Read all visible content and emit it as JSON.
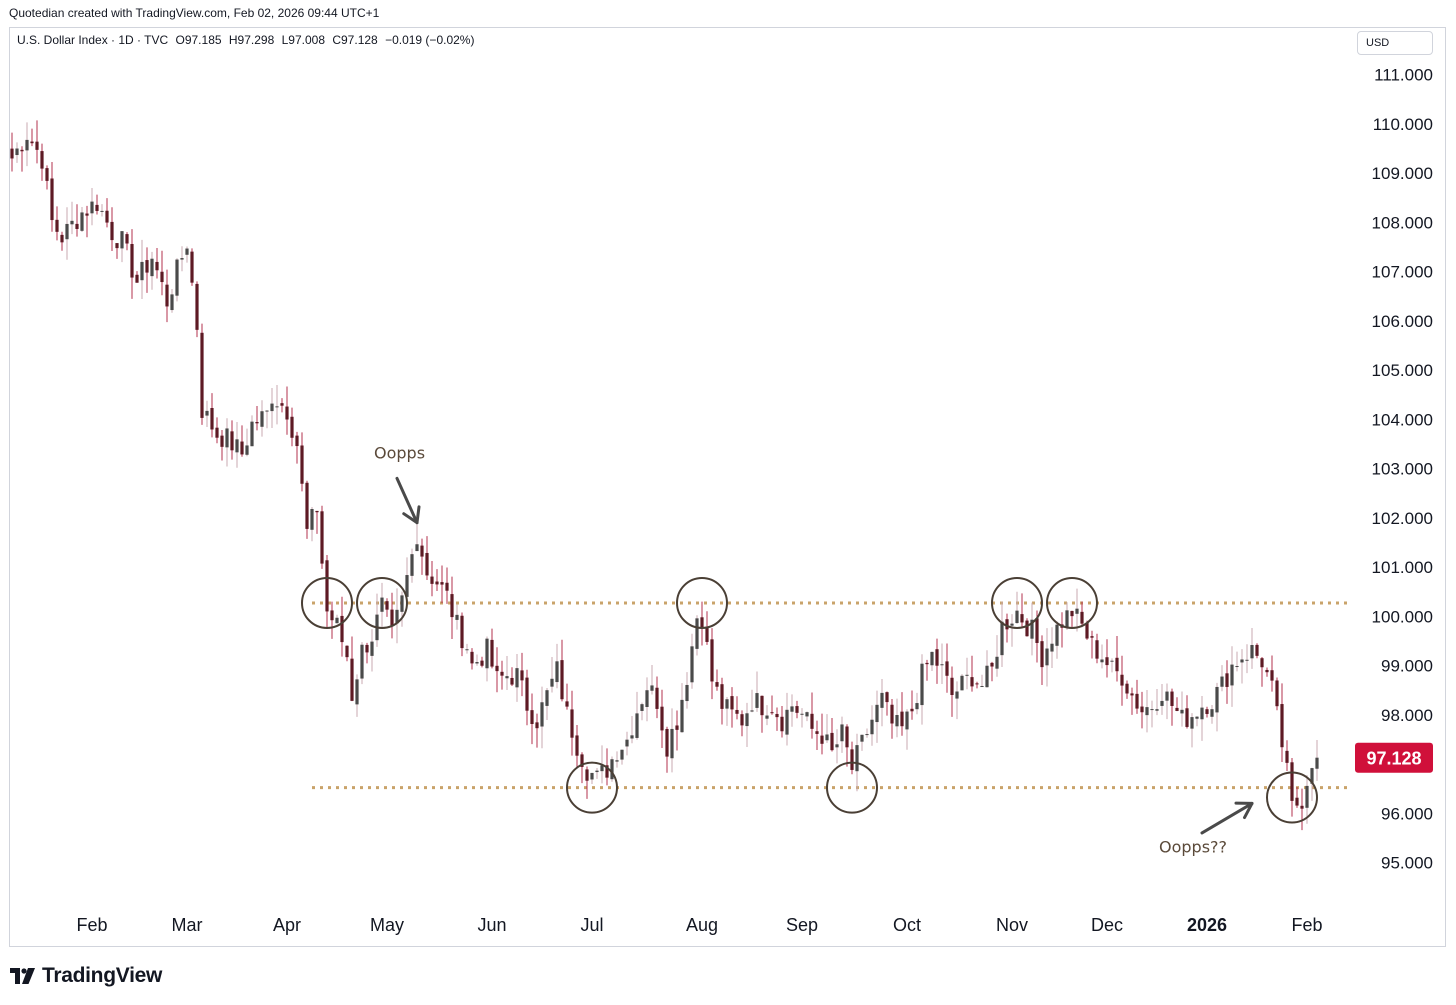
{
  "header": {
    "credit": "Quotedian created with TradingView.com, Feb 02, 2026 09:44 UTC+1"
  },
  "symbol": {
    "name": "U.S. Dollar Index · 1D · TVC",
    "open": "O97.185",
    "high": "H97.298",
    "low": "L97.008",
    "close": "C97.128",
    "change": "−0.019 (−0.02%)"
  },
  "currency_label": "USD",
  "brand": "TradingView",
  "colors": {
    "up_candle": "#4a4a4a",
    "down_candle": "#5e1a24",
    "wick_up": "#c8a9b0",
    "wick_down": "#b3304d",
    "level_line": "#c9a36a",
    "price_tag": "#d0103a",
    "circle": "#4a3f35"
  },
  "chart_data": {
    "type": "candlestick",
    "title": "U.S. Dollar Index · 1D · TVC",
    "y_axis": {
      "ticks": [
        95,
        96,
        97,
        98,
        99,
        100,
        101,
        102,
        103,
        104,
        105,
        106,
        107,
        108,
        109,
        110,
        111
      ],
      "tick_labels": [
        "95.000",
        "96.000",
        "97.000",
        "98.000",
        "99.000",
        "100.000",
        "101.000",
        "102.000",
        "103.000",
        "104.000",
        "105.000",
        "106.000",
        "107.000",
        "108.000",
        "109.000",
        "110.000",
        "111.000"
      ],
      "range": [
        94.0,
        111.7
      ],
      "unit": "USD"
    },
    "x_axis": {
      "labels": [
        "Feb",
        "Mar",
        "Apr",
        "May",
        "Jun",
        "Jul",
        "Aug",
        "Sep",
        "Oct",
        "Nov",
        "Dec",
        "2026",
        "Feb"
      ],
      "bold": [
        false,
        false,
        false,
        false,
        false,
        false,
        false,
        false,
        false,
        false,
        false,
        true,
        false
      ],
      "label_bar_index": [
        16,
        35,
        55,
        75,
        96,
        116,
        138,
        158,
        179,
        200,
        219,
        239,
        259
      ]
    },
    "grid": false,
    "last_price": "97.128",
    "last_price_value": 97.128,
    "levels": [
      100.27,
      96.52
    ],
    "circles": [
      {
        "bar": 63,
        "price": 100.27
      },
      {
        "bar": 74,
        "price": 100.27
      },
      {
        "bar": 116,
        "price": 96.52
      },
      {
        "bar": 138,
        "price": 100.27
      },
      {
        "bar": 168,
        "price": 96.52
      },
      {
        "bar": 201,
        "price": 100.27
      },
      {
        "bar": 212,
        "price": 100.27
      },
      {
        "bar": 256,
        "price": 96.32
      }
    ],
    "annotations": [
      {
        "text": "Oopps",
        "bar": 76,
        "price": 103.2
      },
      {
        "text": "Oopps??",
        "bar": 233,
        "price": 95.2
      }
    ],
    "arrows": [
      {
        "from_bar": 77,
        "from_price": 102.8,
        "to_bar": 81,
        "to_price": 101.9
      },
      {
        "from_bar": 238,
        "from_price": 95.6,
        "to_bar": 248,
        "to_price": 96.2
      }
    ],
    "anchors": [
      [
        0,
        109.3
      ],
      [
        3,
        109.8
      ],
      [
        6,
        109.3
      ],
      [
        8,
        108.0
      ],
      [
        10,
        107.7
      ],
      [
        14,
        108.2
      ],
      [
        17,
        108.4
      ],
      [
        20,
        107.8
      ],
      [
        22,
        107.6
      ],
      [
        25,
        106.8
      ],
      [
        28,
        107.3
      ],
      [
        31,
        106.4
      ],
      [
        34,
        107.3
      ],
      [
        35,
        107.6
      ],
      [
        37,
        105.9
      ],
      [
        38,
        104.2
      ],
      [
        41,
        103.7
      ],
      [
        43,
        103.6
      ],
      [
        46,
        103.3
      ],
      [
        48,
        103.9
      ],
      [
        51,
        104.1
      ],
      [
        52,
        104.5
      ],
      [
        55,
        104.2
      ],
      [
        57,
        103.5
      ],
      [
        59,
        101.7
      ],
      [
        61,
        102.2
      ],
      [
        62,
        101.1
      ],
      [
        63,
        100.1
      ],
      [
        65,
        99.8
      ],
      [
        67,
        99.2
      ],
      [
        68,
        98.4
      ],
      [
        70,
        99.3
      ],
      [
        72,
        99.6
      ],
      [
        74,
        100.2
      ],
      [
        76,
        99.6
      ],
      [
        78,
        100.3
      ],
      [
        81,
        101.7
      ],
      [
        83,
        100.9
      ],
      [
        85,
        100.7
      ],
      [
        87,
        100.4
      ],
      [
        89,
        99.8
      ],
      [
        91,
        99.4
      ],
      [
        92,
        99.0
      ],
      [
        95,
        99.3
      ],
      [
        97,
        98.7
      ],
      [
        99,
        98.8
      ],
      [
        101,
        98.8
      ],
      [
        103,
        98.2
      ],
      [
        105,
        97.9
      ],
      [
        107,
        98.4
      ],
      [
        109,
        98.9
      ],
      [
        111,
        98.0
      ],
      [
        113,
        97.4
      ],
      [
        115,
        96.9
      ],
      [
        117,
        96.7
      ],
      [
        119,
        96.9
      ],
      [
        121,
        97.3
      ],
      [
        123,
        97.5
      ],
      [
        125,
        98.1
      ],
      [
        127,
        98.6
      ],
      [
        129,
        98.3
      ],
      [
        131,
        97.4
      ],
      [
        133,
        97.9
      ],
      [
        135,
        98.8
      ],
      [
        137,
        100.0
      ],
      [
        138,
        100.0
      ],
      [
        140,
        98.7
      ],
      [
        142,
        98.2
      ],
      [
        144,
        98.0
      ],
      [
        146,
        97.9
      ],
      [
        148,
        98.3
      ],
      [
        150,
        98.2
      ],
      [
        152,
        98.2
      ],
      [
        154,
        97.9
      ],
      [
        156,
        98.2
      ],
      [
        158,
        98.0
      ],
      [
        160,
        97.7
      ],
      [
        162,
        97.6
      ],
      [
        164,
        97.2
      ],
      [
        166,
        97.6
      ],
      [
        168,
        96.9
      ],
      [
        170,
        97.4
      ],
      [
        172,
        97.9
      ],
      [
        174,
        98.3
      ],
      [
        176,
        97.8
      ],
      [
        178,
        97.7
      ],
      [
        180,
        98.1
      ],
      [
        182,
        98.8
      ],
      [
        184,
        99.2
      ],
      [
        186,
        98.9
      ],
      [
        188,
        98.4
      ],
      [
        190,
        98.6
      ],
      [
        192,
        98.8
      ],
      [
        194,
        98.6
      ],
      [
        196,
        98.9
      ],
      [
        198,
        99.8
      ],
      [
        201,
        100.1
      ],
      [
        204,
        99.7
      ],
      [
        206,
        99.2
      ],
      [
        208,
        99.6
      ],
      [
        210,
        99.9
      ],
      [
        212,
        100.1
      ],
      [
        214,
        99.8
      ],
      [
        216,
        99.4
      ],
      [
        218,
        99.2
      ],
      [
        220,
        98.9
      ],
      [
        222,
        98.8
      ],
      [
        224,
        98.4
      ],
      [
        226,
        98.1
      ],
      [
        228,
        98.2
      ],
      [
        230,
        98.5
      ],
      [
        232,
        98.2
      ],
      [
        234,
        97.9
      ],
      [
        236,
        98.0
      ],
      [
        238,
        98.2
      ],
      [
        240,
        98.3
      ],
      [
        242,
        98.6
      ],
      [
        244,
        99.0
      ],
      [
        246,
        99.2
      ],
      [
        248,
        99.3
      ],
      [
        250,
        99.1
      ],
      [
        252,
        98.5
      ],
      [
        254,
        97.4
      ],
      [
        255,
        96.8
      ],
      [
        256,
        96.1
      ],
      [
        258,
        96.3
      ],
      [
        260,
        97.1
      ],
      [
        261,
        97.128
      ]
    ],
    "n_bars": 262
  }
}
